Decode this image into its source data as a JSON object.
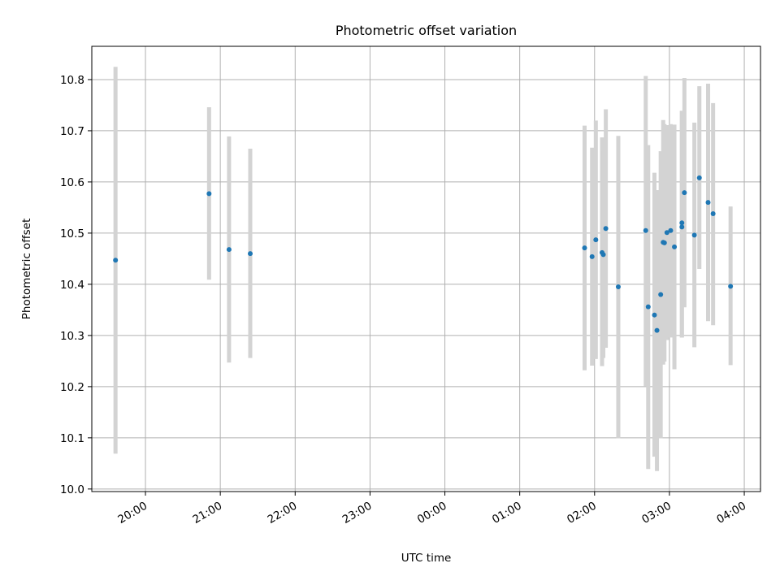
{
  "chart_data": {
    "type": "scatter",
    "title": "Photometric offset variation",
    "xlabel": "UTC time",
    "ylabel": "Photometric offset",
    "grid": true,
    "legend": "none",
    "x_ticks": [
      "20:00",
      "21:00",
      "22:00",
      "23:00",
      "00:00",
      "01:00",
      "02:00",
      "03:00",
      "04:00"
    ],
    "xlim": [
      "19:17",
      "04:13"
    ],
    "y_ticks": [
      "10.0",
      "10.1",
      "10.2",
      "10.3",
      "10.4",
      "10.5",
      "10.6",
      "10.7",
      "10.8"
    ],
    "ylim": [
      9.995,
      10.865
    ],
    "colors": {
      "marker": "#1f77b4",
      "errorbar": "#d3d3d3",
      "grid": "#b0b0b0"
    },
    "series": [
      {
        "points": [
          {
            "t": "19:36",
            "y": 10.447,
            "lo": 10.069,
            "hi": 10.825
          },
          {
            "t": "20:51",
            "y": 10.577,
            "lo": 10.409,
            "hi": 10.746
          },
          {
            "t": "21:07",
            "y": 10.468,
            "lo": 10.247,
            "hi": 10.689
          },
          {
            "t": "21:24",
            "y": 10.46,
            "lo": 10.256,
            "hi": 10.665
          },
          {
            "t": "01:52",
            "y": 10.471,
            "lo": 10.232,
            "hi": 10.71
          },
          {
            "t": "01:58",
            "y": 10.454,
            "lo": 10.241,
            "hi": 10.667
          },
          {
            "t": "02:01",
            "y": 10.487,
            "lo": 10.254,
            "hi": 10.72
          },
          {
            "t": "02:06",
            "y": 10.462,
            "lo": 10.24,
            "hi": 10.687
          },
          {
            "t": "02:07",
            "y": 10.458,
            "lo": 10.256,
            "hi": 10.661
          },
          {
            "t": "02:09",
            "y": 10.509,
            "lo": 10.276,
            "hi": 10.742
          },
          {
            "t": "02:19",
            "y": 10.395,
            "lo": 10.099,
            "hi": 10.69
          },
          {
            "t": "02:41",
            "y": 10.505,
            "lo": 10.201,
            "hi": 10.807
          },
          {
            "t": "02:43",
            "y": 10.356,
            "lo": 10.039,
            "hi": 10.672
          },
          {
            "t": "02:48",
            "y": 10.34,
            "lo": 10.063,
            "hi": 10.618
          },
          {
            "t": "02:50",
            "y": 10.31,
            "lo": 10.035,
            "hi": 10.584
          },
          {
            "t": "02:53",
            "y": 10.38,
            "lo": 10.099,
            "hi": 10.66
          },
          {
            "t": "02:55",
            "y": 10.482,
            "lo": 10.243,
            "hi": 10.721
          },
          {
            "t": "02:56",
            "y": 10.481,
            "lo": 10.249,
            "hi": 10.713
          },
          {
            "t": "02:58",
            "y": 10.501,
            "lo": 10.291,
            "hi": 10.711
          },
          {
            "t": "03:01",
            "y": 10.505,
            "lo": 10.296,
            "hi": 10.713
          },
          {
            "t": "03:04",
            "y": 10.473,
            "lo": 10.234,
            "hi": 10.712
          },
          {
            "t": "03:10",
            "y": 10.512,
            "lo": 10.296,
            "hi": 10.739
          },
          {
            "t": "03:10",
            "y": 10.52,
            "lo": 10.296,
            "hi": 10.739
          },
          {
            "t": "03:12",
            "y": 10.579,
            "lo": 10.355,
            "hi": 10.803
          },
          {
            "t": "03:20",
            "y": 10.496,
            "lo": 10.277,
            "hi": 10.716
          },
          {
            "t": "03:24",
            "y": 10.608,
            "lo": 10.43,
            "hi": 10.787
          },
          {
            "t": "03:31",
            "y": 10.56,
            "lo": 10.328,
            "hi": 10.792
          },
          {
            "t": "03:35",
            "y": 10.538,
            "lo": 10.32,
            "hi": 10.754
          },
          {
            "t": "03:49",
            "y": 10.396,
            "lo": 10.242,
            "hi": 10.552
          }
        ]
      }
    ]
  }
}
